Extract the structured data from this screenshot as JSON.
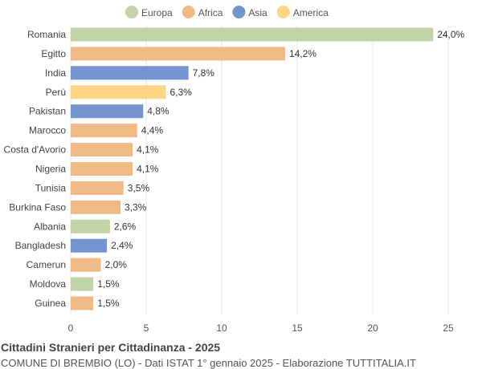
{
  "chart_data": {
    "type": "bar",
    "orientation": "horizontal",
    "title": "Cittadini Stranieri per Cittadinanza - 2025",
    "subtitle": "COMUNE DI BREMBIO (LO) - Dati ISTAT 1° gennaio 2025 - Elaborazione TUTTITALIA.IT",
    "categories": [
      "Romania",
      "Egitto",
      "India",
      "Perù",
      "Pakistan",
      "Marocco",
      "Costa d'Avorio",
      "Nigeria",
      "Tunisia",
      "Burkina Faso",
      "Albania",
      "Bangladesh",
      "Camerun",
      "Moldova",
      "Guinea"
    ],
    "values": [
      24.0,
      14.2,
      7.8,
      6.3,
      4.8,
      4.4,
      4.1,
      4.1,
      3.5,
      3.3,
      2.6,
      2.4,
      2.0,
      1.5,
      1.5
    ],
    "value_labels": [
      "24,0%",
      "14,2%",
      "7,8%",
      "6,3%",
      "4,8%",
      "4,4%",
      "4,1%",
      "4,1%",
      "3,5%",
      "3,3%",
      "2,6%",
      "2,4%",
      "2,0%",
      "1,5%",
      "1,5%"
    ],
    "groups": [
      "Europa",
      "Africa",
      "Asia",
      "America",
      "Asia",
      "Africa",
      "Africa",
      "Africa",
      "Africa",
      "Africa",
      "Europa",
      "Asia",
      "Africa",
      "Europa",
      "Africa"
    ],
    "legend": [
      {
        "name": "Europa",
        "color": "#c1d3a7"
      },
      {
        "name": "Africa",
        "color": "#f0ba86"
      },
      {
        "name": "Asia",
        "color": "#7394cc"
      },
      {
        "name": "America",
        "color": "#fed584"
      }
    ],
    "legend_position": "top",
    "xlim": [
      0,
      25
    ],
    "xticks": [
      0,
      5,
      10,
      15,
      20,
      25
    ],
    "grid": true
  }
}
